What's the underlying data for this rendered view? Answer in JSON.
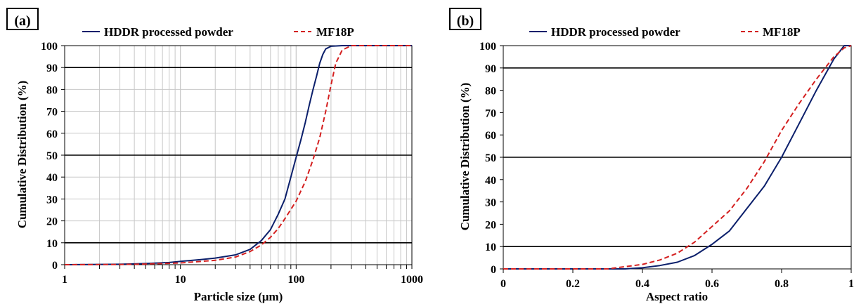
{
  "chart_data": [
    {
      "panel_label": "(a)",
      "type": "line",
      "xlabel": "Particle size (μm)",
      "ylabel": "Cumulative Distribution (%)",
      "xscale": "log",
      "xlim": [
        1,
        1000
      ],
      "ylim": [
        0,
        100
      ],
      "x_ticks": [
        "1",
        "10",
        "100",
        "1000"
      ],
      "y_ticks": [
        "0",
        "10",
        "20",
        "30",
        "40",
        "50",
        "60",
        "70",
        "80",
        "90",
        "100"
      ],
      "grid": true,
      "reference_lines_y": [
        10,
        50,
        90
      ],
      "legend_position": "top",
      "series": [
        {
          "name": "HDDR processed powder",
          "color": "#0b1f6b",
          "style": "solid",
          "points": [
            [
              1,
              0
            ],
            [
              3,
              0.2
            ],
            [
              5,
              0.5
            ],
            [
              8,
              1
            ],
            [
              10,
              1.5
            ],
            [
              15,
              2.3
            ],
            [
              20,
              3
            ],
            [
              30,
              4.5
            ],
            [
              40,
              7
            ],
            [
              50,
              11
            ],
            [
              60,
              16
            ],
            [
              70,
              23
            ],
            [
              80,
              30
            ],
            [
              90,
              40
            ],
            [
              100,
              49
            ],
            [
              110,
              57
            ],
            [
              120,
              65
            ],
            [
              130,
              73
            ],
            [
              140,
              80
            ],
            [
              150,
              86
            ],
            [
              160,
              92
            ],
            [
              170,
              96
            ],
            [
              180,
              98.5
            ],
            [
              200,
              99.7
            ],
            [
              250,
              100
            ],
            [
              1000,
              100
            ]
          ]
        },
        {
          "name": "MF18P",
          "color": "#d42020",
          "style": "dashed",
          "points": [
            [
              1,
              0
            ],
            [
              3,
              0.1
            ],
            [
              5,
              0.3
            ],
            [
              10,
              0.8
            ],
            [
              20,
              2
            ],
            [
              30,
              3.5
            ],
            [
              40,
              6
            ],
            [
              50,
              9
            ],
            [
              60,
              12.5
            ],
            [
              70,
              16.5
            ],
            [
              80,
              21
            ],
            [
              100,
              29
            ],
            [
              120,
              38
            ],
            [
              140,
              48
            ],
            [
              160,
              58
            ],
            [
              180,
              70
            ],
            [
              200,
              82
            ],
            [
              220,
              92
            ],
            [
              250,
              98
            ],
            [
              300,
              100
            ],
            [
              1000,
              100
            ]
          ]
        }
      ]
    },
    {
      "panel_label": "(b)",
      "type": "line",
      "xlabel": "Aspect ratio",
      "ylabel": "Cumulative Distribution (%)",
      "xlim": [
        0,
        1
      ],
      "ylim": [
        0,
        100
      ],
      "x_ticks": [
        "0",
        "0.2",
        "0.4",
        "0.6",
        "0.8",
        "1"
      ],
      "y_ticks": [
        "0",
        "10",
        "20",
        "30",
        "40",
        "50",
        "60",
        "70",
        "80",
        "90",
        "100"
      ],
      "grid": false,
      "reference_lines_y": [
        10,
        50,
        90
      ],
      "legend_position": "top",
      "series": [
        {
          "name": "HDDR processed powder",
          "color": "#0b1f6b",
          "style": "solid",
          "points": [
            [
              0,
              0
            ],
            [
              0.35,
              0
            ],
            [
              0.4,
              0.5
            ],
            [
              0.45,
              1.5
            ],
            [
              0.5,
              3
            ],
            [
              0.55,
              6
            ],
            [
              0.6,
              11
            ],
            [
              0.65,
              17
            ],
            [
              0.7,
              27
            ],
            [
              0.75,
              37
            ],
            [
              0.8,
              50
            ],
            [
              0.85,
              65
            ],
            [
              0.9,
              80
            ],
            [
              0.95,
              94
            ],
            [
              0.98,
              100
            ],
            [
              1,
              100
            ]
          ]
        },
        {
          "name": "MF18P",
          "color": "#d42020",
          "style": "dashed",
          "points": [
            [
              0,
              0
            ],
            [
              0.3,
              0
            ],
            [
              0.35,
              1
            ],
            [
              0.4,
              2
            ],
            [
              0.45,
              4
            ],
            [
              0.5,
              7
            ],
            [
              0.55,
              12
            ],
            [
              0.6,
              19
            ],
            [
              0.65,
              26
            ],
            [
              0.7,
              36
            ],
            [
              0.75,
              48
            ],
            [
              0.8,
              62
            ],
            [
              0.85,
              74
            ],
            [
              0.9,
              85
            ],
            [
              0.95,
              95
            ],
            [
              0.98,
              99
            ],
            [
              1,
              100
            ]
          ]
        }
      ]
    }
  ]
}
